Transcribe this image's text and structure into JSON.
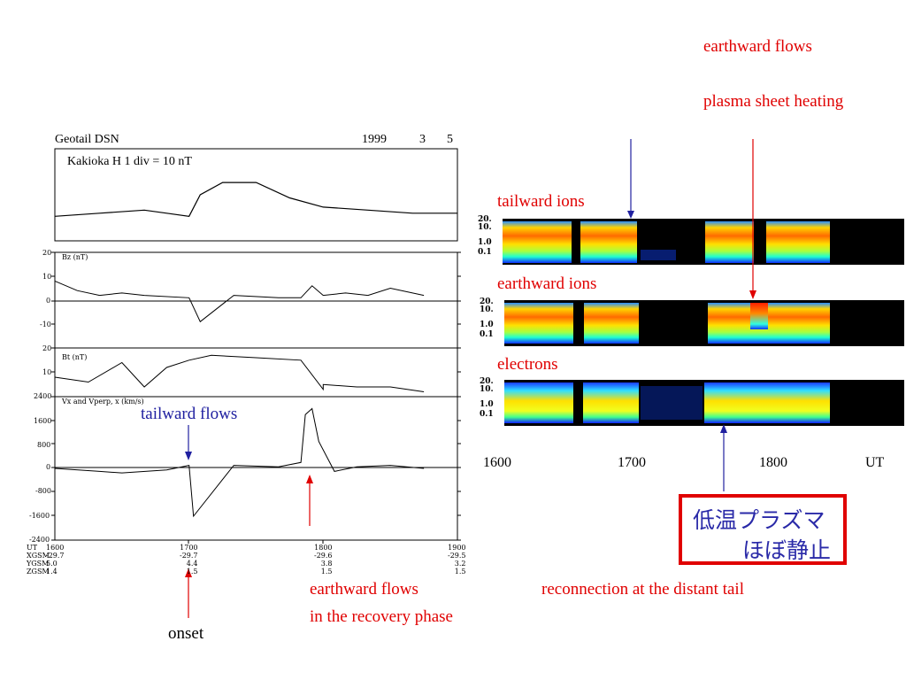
{
  "header": {
    "left": "Geotail   DSN",
    "year": "1999",
    "month": "3",
    "day": "5",
    "kakioka": "Kakioka   H   1 div = 10 nT"
  },
  "panels": {
    "bz": "Bz (nT)",
    "bt": "Bt (nT)",
    "vx": "Vx and Vperp, x (km/s)"
  },
  "yticks": {
    "bz": [
      "20",
      "10",
      "0",
      "-10"
    ],
    "bt": [
      "20",
      "10"
    ],
    "vx": [
      "2400",
      "1600",
      "800",
      "0",
      "-800",
      "-1600",
      "-2400"
    ]
  },
  "orbit": {
    "labels": [
      "UT",
      "XGSM",
      "YGSM",
      "ZGSM"
    ],
    "col1600": [
      "1600",
      "-29.7",
      "5.0",
      "1.4"
    ],
    "col1700": [
      "1700",
      "-29.7",
      "4.4",
      "1.5"
    ],
    "col1800": [
      "1800",
      "-29.6",
      "3.8",
      "1.5"
    ],
    "col1900": [
      "1900",
      "-29.5",
      "3.2",
      "1.5"
    ]
  },
  "spectro": {
    "title_ions_tail": "tailward ions",
    "title_ions_earth": "earthward ions",
    "title_electrons": "electrons",
    "ylabels": [
      "20.",
      "10.",
      "1.0",
      "0.1"
    ],
    "xticks": [
      "1600",
      "1700",
      "1800",
      "UT"
    ]
  },
  "annotations": {
    "earthward_flows_top": "earthward flows",
    "plasma_sheet_heating": "plasma sheet heating",
    "tailward_flows": "tailward flows",
    "earthward_flows_recovery_1": "earthward flows",
    "earthward_flows_recovery_2": "in the recovery phase",
    "onset": "onset",
    "reconnection": "reconnection at the distant tail",
    "jp_line1": "低温プラズマ",
    "jp_line2": "ほぼ静止"
  },
  "colors": {
    "red": "#e00000",
    "blue": "#2020a0",
    "spectro_bg": "#000000"
  },
  "chart_data": [
    {
      "type": "line",
      "title": "Kakioka H",
      "x": [
        1600,
        1620,
        1640,
        1650,
        1700,
        1705,
        1715,
        1730,
        1745,
        1800,
        1820,
        1840,
        1900
      ],
      "values": [
        -2,
        -1,
        0,
        -1,
        -2,
        5,
        9,
        9,
        4,
        1,
        0,
        -1,
        -1
      ]
    },
    {
      "type": "line",
      "title": "Bz (nT)",
      "ylim": [
        -10,
        20
      ],
      "x": [
        1600,
        1610,
        1620,
        1630,
        1640,
        1700,
        1705,
        1720,
        1740,
        1750,
        1755,
        1800,
        1810,
        1820,
        1830,
        1845
      ],
      "values": [
        8,
        4,
        2,
        3,
        2,
        1,
        -9,
        2,
        1,
        1,
        6,
        2,
        3,
        2,
        5,
        2
      ]
    },
    {
      "type": "line",
      "title": "Bt (nT)",
      "ylim": [
        0,
        20
      ],
      "x": [
        1600,
        1615,
        1630,
        1640,
        1650,
        1700,
        1710,
        1730,
        1750,
        1760,
        1800,
        1815,
        1830,
        1845
      ],
      "values": [
        8,
        6,
        14,
        4,
        12,
        15,
        17,
        16,
        15,
        3,
        5,
        4,
        4,
        2
      ]
    },
    {
      "type": "line",
      "title": "Vx and Vperp, x (km/s)",
      "ylim": [
        -2400,
        2400
      ],
      "x": [
        1600,
        1620,
        1630,
        1650,
        1700,
        1702,
        1720,
        1740,
        1750,
        1752,
        1755,
        1758,
        1805,
        1815,
        1830,
        1845
      ],
      "values": [
        0,
        -100,
        -150,
        -50,
        100,
        -1600,
        100,
        50,
        200,
        1800,
        2000,
        900,
        -100,
        50,
        100,
        0
      ]
    }
  ]
}
